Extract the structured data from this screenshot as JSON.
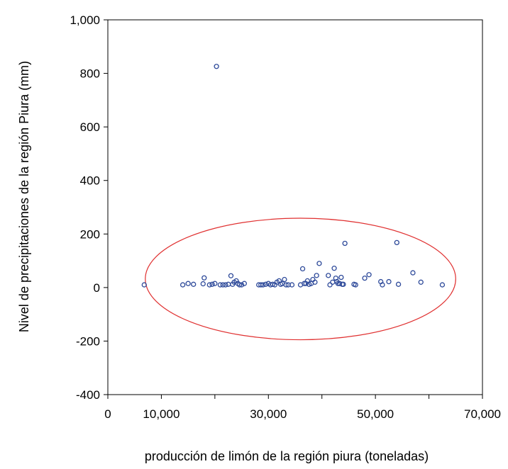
{
  "chart_data": {
    "type": "scatter",
    "title": "",
    "xlabel": "producción de limón de la región piura (toneladas)",
    "ylabel": "Nivel de precipitaciones de la región Piura (mm)",
    "xlim": [
      0,
      70000
    ],
    "ylim": [
      -400,
      1000
    ],
    "x_tick_labels": [
      {
        "value": 0,
        "label": "0"
      },
      {
        "value": 10000,
        "label": "10,000"
      },
      {
        "value": 30000,
        "label": "30,000"
      },
      {
        "value": 50000,
        "label": "50,000"
      },
      {
        "value": 70000,
        "label": "70,000"
      }
    ],
    "x_minor_ticks": [
      0,
      10000,
      20000,
      30000,
      40000,
      50000,
      60000,
      70000
    ],
    "y_tick_labels": [
      {
        "value": -400,
        "label": "-400"
      },
      {
        "value": -200,
        "label": "-200"
      },
      {
        "value": 0,
        "label": "0"
      },
      {
        "value": 200,
        "label": "200"
      },
      {
        "value": 400,
        "label": "400"
      },
      {
        "value": 600,
        "label": "600"
      },
      {
        "value": 800,
        "label": "800"
      },
      {
        "value": 1000,
        "label": "1,000"
      }
    ],
    "grid": false,
    "marker_color": "#2e4a9a",
    "annotation_color": "#e03030",
    "annotation": {
      "type": "ellipse",
      "center": [
        36000,
        32
      ],
      "radii": [
        29000,
        227
      ]
    },
    "points": [
      [
        6800,
        10
      ],
      [
        20300,
        826
      ],
      [
        14000,
        10
      ],
      [
        15000,
        15
      ],
      [
        16000,
        12
      ],
      [
        17800,
        14
      ],
      [
        18000,
        36
      ],
      [
        19000,
        10
      ],
      [
        19500,
        12
      ],
      [
        20000,
        15
      ],
      [
        21000,
        10
      ],
      [
        21500,
        10
      ],
      [
        22000,
        10
      ],
      [
        22500,
        12
      ],
      [
        23000,
        44
      ],
      [
        23300,
        12
      ],
      [
        23600,
        20
      ],
      [
        24000,
        25
      ],
      [
        24300,
        15
      ],
      [
        24600,
        10
      ],
      [
        25000,
        10
      ],
      [
        25500,
        15
      ],
      [
        28200,
        10
      ],
      [
        28600,
        10
      ],
      [
        29000,
        10
      ],
      [
        29500,
        12
      ],
      [
        30000,
        15
      ],
      [
        30400,
        10
      ],
      [
        30800,
        12
      ],
      [
        31200,
        10
      ],
      [
        31600,
        20
      ],
      [
        32000,
        25
      ],
      [
        32300,
        12
      ],
      [
        32600,
        15
      ],
      [
        33000,
        30
      ],
      [
        33300,
        10
      ],
      [
        33700,
        10
      ],
      [
        34400,
        10
      ],
      [
        36000,
        10
      ],
      [
        36400,
        70
      ],
      [
        36700,
        15
      ],
      [
        37000,
        15
      ],
      [
        37300,
        25
      ],
      [
        37600,
        12
      ],
      [
        38000,
        15
      ],
      [
        38300,
        30
      ],
      [
        38700,
        20
      ],
      [
        39000,
        45
      ],
      [
        39500,
        90
      ],
      [
        41200,
        45
      ],
      [
        41500,
        10
      ],
      [
        42000,
        20
      ],
      [
        42300,
        72
      ],
      [
        42600,
        35
      ],
      [
        42800,
        22
      ],
      [
        43000,
        15
      ],
      [
        43300,
        15
      ],
      [
        43600,
        38
      ],
      [
        43800,
        12
      ],
      [
        44000,
        12
      ],
      [
        44300,
        165
      ],
      [
        46000,
        12
      ],
      [
        46300,
        10
      ],
      [
        48000,
        35
      ],
      [
        48800,
        48
      ],
      [
        51000,
        22
      ],
      [
        51300,
        10
      ],
      [
        52500,
        22
      ],
      [
        54000,
        168
      ],
      [
        54300,
        12
      ],
      [
        57000,
        55
      ],
      [
        58500,
        20
      ],
      [
        62500,
        10
      ]
    ]
  }
}
